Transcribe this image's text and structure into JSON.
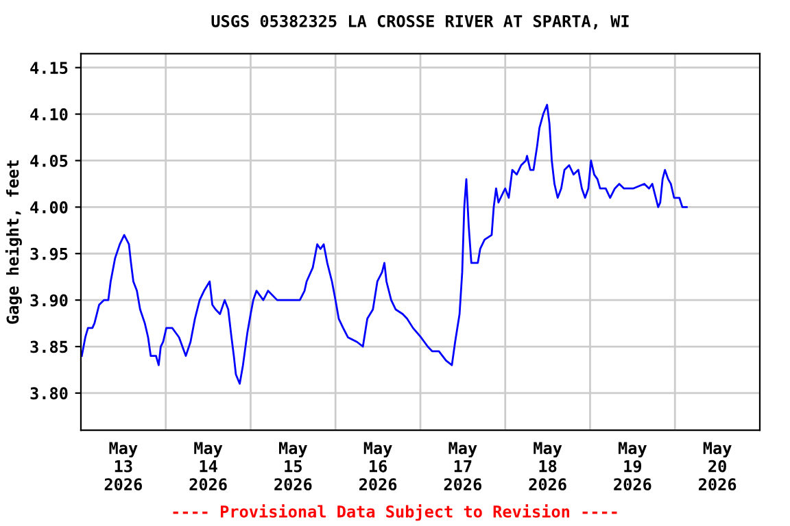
{
  "chart_data": {
    "type": "line",
    "title": "USGS 05382325 LA CROSSE RIVER AT SPARTA, WI",
    "ylabel": "Gage height, feet",
    "annotations": [
      "---- Provisional Data Subject to Revision ----"
    ],
    "x": [
      "2026-05-13T00:15",
      "2026-05-13T01:15",
      "2026-05-13T02:00",
      "2026-05-13T03:15",
      "2026-05-13T03:50",
      "2026-05-13T05:10",
      "2026-05-13T06:30",
      "2026-05-13T07:45",
      "2026-05-13T08:25",
      "2026-05-13T09:40",
      "2026-05-13T11:00",
      "2026-05-13T12:15",
      "2026-05-13T13:35",
      "2026-05-13T14:10",
      "2026-05-13T14:50",
      "2026-05-13T15:50",
      "2026-05-13T16:45",
      "2026-05-13T18:05",
      "2026-05-13T19:00",
      "2026-05-13T19:45",
      "2026-05-13T21:15",
      "2026-05-13T22:00",
      "2026-05-13T22:35",
      "2026-05-13T23:15",
      "2026-05-14T00:10",
      "2026-05-14T01:50",
      "2026-05-14T03:45",
      "2026-05-14T05:40",
      "2026-05-14T07:00",
      "2026-05-14T08:15",
      "2026-05-14T09:35",
      "2026-05-14T10:50",
      "2026-05-14T12:25",
      "2026-05-14T13:10",
      "2026-05-14T14:05",
      "2026-05-14T15:20",
      "2026-05-14T16:40",
      "2026-05-14T17:40",
      "2026-05-14T18:35",
      "2026-05-14T19:15",
      "2026-05-14T19:50",
      "2026-05-14T20:55",
      "2026-05-14T21:50",
      "2026-05-14T23:05",
      "2026-05-15T00:00",
      "2026-05-15T00:45",
      "2026-05-15T01:40",
      "2026-05-15T03:35",
      "2026-05-15T04:55",
      "2026-05-15T07:30",
      "2026-05-15T11:20",
      "2026-05-15T13:55",
      "2026-05-15T15:15",
      "2026-05-15T15:50",
      "2026-05-15T17:35",
      "2026-05-15T18:50",
      "2026-05-15T19:45",
      "2026-05-15T20:40",
      "2026-05-15T21:40",
      "2026-05-15T23:00",
      "2026-05-16T00:00",
      "2026-05-16T00:55",
      "2026-05-16T02:10",
      "2026-05-16T03:30",
      "2026-05-16T06:05",
      "2026-05-16T07:45",
      "2026-05-16T09:00",
      "2026-05-16T10:35",
      "2026-05-16T11:50",
      "2026-05-16T13:10",
      "2026-05-16T13:50",
      "2026-05-16T14:25",
      "2026-05-16T15:45",
      "2026-05-16T17:00",
      "2026-05-16T19:00",
      "2026-05-16T20:15",
      "2026-05-16T21:55",
      "2026-05-17T00:10",
      "2026-05-17T02:05",
      "2026-05-17T03:20",
      "2026-05-17T05:15",
      "2026-05-17T07:15",
      "2026-05-17T08:55",
      "2026-05-17T09:50",
      "2026-05-17T11:05",
      "2026-05-17T11:50",
      "2026-05-17T12:25",
      "2026-05-17T13:00",
      "2026-05-17T13:40",
      "2026-05-17T14:25",
      "2026-05-17T16:15",
      "2026-05-17T16:55",
      "2026-05-17T18:10",
      "2026-05-17T20:10",
      "2026-05-17T20:45",
      "2026-05-17T21:25",
      "2026-05-17T22:05",
      "2026-05-17T23:20",
      "2026-05-18T00:00",
      "2026-05-18T01:00",
      "2026-05-18T02:00",
      "2026-05-18T03:15",
      "2026-05-18T04:30",
      "2026-05-18T05:50",
      "2026-05-18T06:10",
      "2026-05-18T07:05",
      "2026-05-18T08:00",
      "2026-05-18T09:00",
      "2026-05-18T09:40",
      "2026-05-18T10:45",
      "2026-05-18T11:50",
      "2026-05-18T12:30",
      "2026-05-18T13:10",
      "2026-05-18T13:55",
      "2026-05-18T14:50",
      "2026-05-18T15:50",
      "2026-05-18T16:45",
      "2026-05-18T18:05",
      "2026-05-18T19:20",
      "2026-05-18T20:40",
      "2026-05-18T21:40",
      "2026-05-18T22:35",
      "2026-05-18T23:30",
      "2026-05-19T00:15",
      "2026-05-19T01:10",
      "2026-05-19T02:05",
      "2026-05-19T02:50",
      "2026-05-19T04:25",
      "2026-05-19T05:40",
      "2026-05-19T07:00",
      "2026-05-19T08:15",
      "2026-05-19T09:35",
      "2026-05-19T12:10",
      "2026-05-19T15:20",
      "2026-05-19T16:40",
      "2026-05-19T17:35",
      "2026-05-19T18:35",
      "2026-05-19T19:15",
      "2026-05-19T19:50",
      "2026-05-19T20:30",
      "2026-05-19T21:10",
      "2026-05-19T22:05",
      "2026-05-19T22:50",
      "2026-05-19T23:45",
      "2026-05-20T01:15",
      "2026-05-20T02:05",
      "2026-05-20T03:20"
    ],
    "series": [
      {
        "color": "#0000ff",
        "values": [
          3.84,
          3.86,
          3.87,
          3.87,
          3.875,
          3.895,
          3.9,
          3.9,
          3.92,
          3.945,
          3.96,
          3.97,
          3.96,
          3.94,
          3.92,
          3.91,
          3.89,
          3.875,
          3.86,
          3.84,
          3.84,
          3.83,
          3.85,
          3.855,
          3.87,
          3.87,
          3.86,
          3.84,
          3.855,
          3.88,
          3.9,
          3.91,
          3.92,
          3.895,
          3.89,
          3.885,
          3.9,
          3.89,
          3.86,
          3.84,
          3.82,
          3.81,
          3.83,
          3.865,
          3.885,
          3.9,
          3.91,
          3.9,
          3.91,
          3.9,
          3.9,
          3.9,
          3.91,
          3.92,
          3.935,
          3.96,
          3.955,
          3.96,
          3.94,
          3.92,
          3.9,
          3.88,
          3.87,
          3.86,
          3.855,
          3.85,
          3.88,
          3.89,
          3.92,
          3.93,
          3.94,
          3.92,
          3.9,
          3.89,
          3.885,
          3.88,
          3.87,
          3.86,
          3.85,
          3.845,
          3.845,
          3.835,
          3.83,
          3.855,
          3.885,
          3.93,
          4.0,
          4.03,
          3.98,
          3.94,
          3.94,
          3.955,
          3.965,
          3.97,
          4.0,
          4.02,
          4.005,
          4.015,
          4.02,
          4.01,
          4.04,
          4.035,
          4.045,
          4.05,
          4.055,
          4.04,
          4.04,
          4.065,
          4.085,
          4.1,
          4.11,
          4.09,
          4.05,
          4.025,
          4.01,
          4.02,
          4.04,
          4.045,
          4.035,
          4.04,
          4.02,
          4.01,
          4.02,
          4.05,
          4.035,
          4.03,
          4.02,
          4.02,
          4.01,
          4.02,
          4.025,
          4.02,
          4.02,
          4.025,
          4.02,
          4.025,
          4.01,
          4.0,
          4.005,
          4.03,
          4.04,
          4.03,
          4.025,
          4.01,
          4.01,
          4.0,
          4.0
        ]
      }
    ],
    "xlim": [
      "2026-05-13T00:00",
      "2026-05-21T00:00"
    ],
    "xticks": [
      {
        "value": "2026-05-14T00:00",
        "label": null
      },
      {
        "value": "2026-05-15T00:00",
        "label": null
      },
      {
        "value": "2026-05-16T00:00",
        "label": null
      },
      {
        "value": "2026-05-17T00:00",
        "label": null
      },
      {
        "value": "2026-05-18T00:00",
        "label": null
      },
      {
        "value": "2026-05-19T00:00",
        "label": null
      },
      {
        "value": "2026-05-20T00:00",
        "label": null
      },
      {
        "value": "2026-05-13T12:00",
        "label": "May\n13\n2026"
      },
      {
        "value": "2026-05-14T12:00",
        "label": "May\n14\n2026"
      },
      {
        "value": "2026-05-15T12:00",
        "label": "May\n15\n2026"
      },
      {
        "value": "2026-05-16T12:00",
        "label": "May\n16\n2026"
      },
      {
        "value": "2026-05-17T12:00",
        "label": "May\n17\n2026"
      },
      {
        "value": "2026-05-18T12:00",
        "label": "May\n18\n2026"
      },
      {
        "value": "2026-05-19T12:00",
        "label": "May\n19\n2026"
      },
      {
        "value": "2026-05-20T12:00",
        "label": "May\n20\n2026"
      }
    ],
    "ylim": [
      3.76,
      4.165
    ],
    "yticks": [
      {
        "value": 3.8,
        "label": "3.80"
      },
      3.85,
      {
        "value": 3.9,
        "label": "3.90"
      },
      3.95,
      {
        "value": 4.0,
        "label": "4.00"
      },
      4.05,
      {
        "value": 4.1,
        "label": "4.10"
      },
      4.15
    ],
    "grid": true,
    "line_style": "solid"
  }
}
